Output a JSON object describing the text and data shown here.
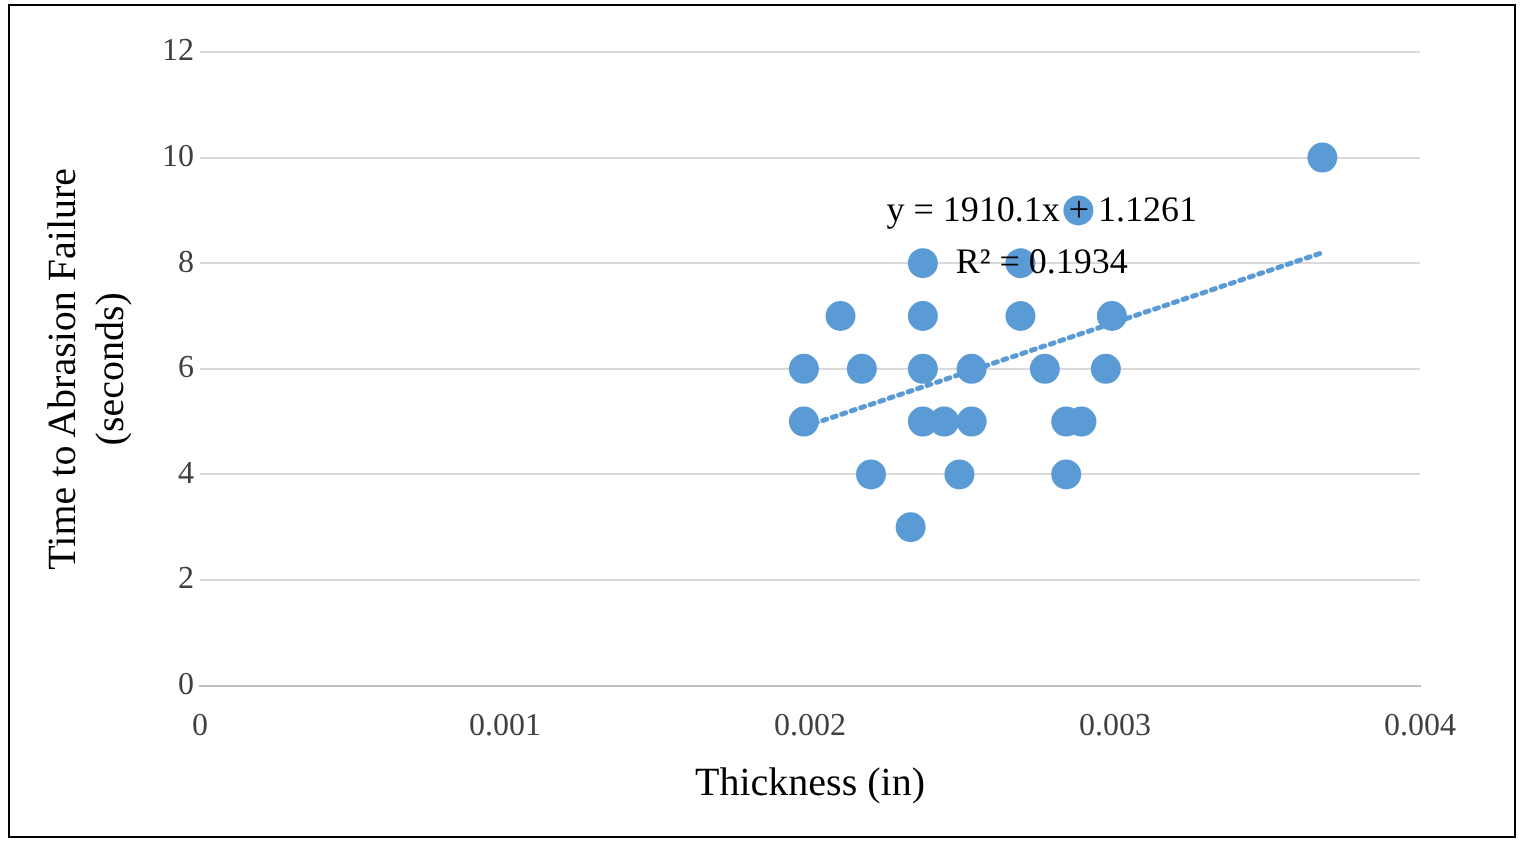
{
  "chart_data": {
    "type": "scatter",
    "xlabel": "Thickness (in)",
    "ylabel": "Time to Abrasion Failure (seconds)",
    "xlim": [
      0,
      0.004
    ],
    "xticks": [
      0,
      0.001,
      0.002,
      0.003,
      0.004
    ],
    "ylim": [
      0,
      12
    ],
    "yticks": [
      0,
      2,
      4,
      6,
      8,
      10,
      12
    ],
    "grid": "y",
    "legend": false,
    "marker": "circle",
    "series": [
      {
        "color": "#5b9bd5",
        "x": [
          0.00198,
          0.00198,
          0.0021,
          0.00217,
          0.0022,
          0.00233,
          0.00237,
          0.00237,
          0.00237,
          0.00237,
          0.00244,
          0.00249,
          0.00253,
          0.00253,
          0.00269,
          0.00269,
          0.00277,
          0.00284,
          0.00289,
          0.00284,
          0.00288,
          0.00297,
          0.00299,
          0.00368
        ],
        "values": [
          6,
          5,
          7,
          6,
          4,
          3,
          8,
          7,
          6,
          5,
          5,
          4,
          6,
          5,
          8,
          7,
          6,
          5,
          5,
          4,
          9,
          6,
          7,
          10
        ]
      },
      {
        "type": "line",
        "color": "#5b9bd5",
        "line_style": "dotted",
        "marker": "none",
        "x": [
          0.00198,
          0.00368
        ],
        "values": [
          4.9,
          8.2
        ]
      }
    ],
    "annotations": [
      "y = 1910.1x + 1.1261",
      "R² = 0.1934"
    ]
  }
}
